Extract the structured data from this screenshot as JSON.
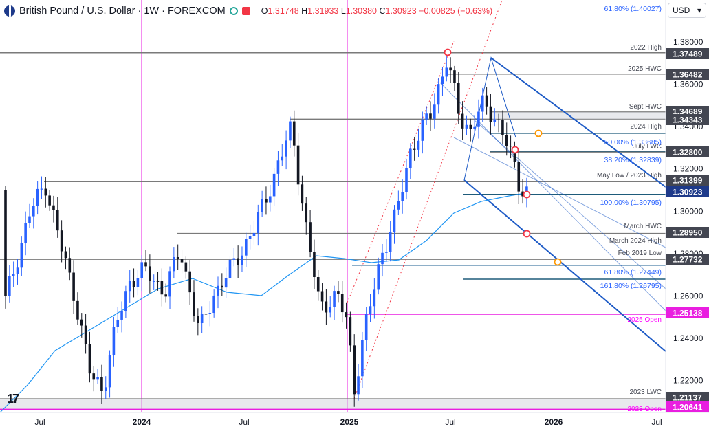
{
  "header": {
    "symbol": "British Pound / U.S. Dollar · 1W · FOREXCOM",
    "o_label": "O",
    "o": "1.31748",
    "h_label": "H",
    "h": "1.31933",
    "l_label": "L",
    "l": "1.30380",
    "c_label": "C",
    "c": "1.30923",
    "change": "−0.00825 (−0.63%)",
    "currency": "USD"
  },
  "colors": {
    "up": "#2962ff",
    "down": "#131722",
    "ma": "#2196f3",
    "level": "#7a7a7a",
    "magenta": "#e91ee0",
    "channel": "#1e5bc6",
    "fib_text": "#2962ff",
    "open_label": "#ff00ff",
    "badge_dark": "#434651",
    "last_badge": "#1e3a8a"
  },
  "chart_data": {
    "type": "candlestick",
    "yrange": [
      1.2113,
      1.3749
    ],
    "last_price": 1.30923,
    "price_ticks": [
      "1.38000",
      "1.36000",
      "1.34000",
      "1.32000",
      "1.30000",
      "1.28000",
      "1.26000",
      "1.24000",
      "1.22000"
    ],
    "time_ticks": [
      "Jul",
      "2024",
      "Jul",
      "2025",
      "Jul",
      "2026",
      "Jul"
    ],
    "horizontal_levels": [
      {
        "label": "2022 High",
        "badge": "1.37489",
        "price": 1.37489
      },
      {
        "label": "2025 HWC",
        "badge": "1.36482",
        "price": 1.36482
      },
      {
        "label": "Sept HWC",
        "badge": "1.34689",
        "price": 1.34689
      },
      {
        "label": "",
        "badge": "1.34343",
        "price": 1.34343
      },
      {
        "label": "2024 High",
        "badge": "",
        "price": 1.3435
      },
      {
        "label": "July LWC",
        "badge": "1.32800",
        "price": 1.328
      },
      {
        "label": "May Low / 2023 High",
        "badge": "1.31399",
        "price": 1.31399
      },
      {
        "label": "March HWC",
        "badge": "",
        "price": 1.2895
      },
      {
        "label": "March 2024 High",
        "badge": "1.28950",
        "price": 1.2895
      },
      {
        "label": "Feb 2019 Low",
        "badge": "1.27732",
        "price": 1.27732
      },
      {
        "label": "2025 Open",
        "badge": "1.25138",
        "price": 1.25138
      },
      {
        "label": "2023 LWC",
        "badge": "1.21137",
        "price": 1.21137
      },
      {
        "label": "2023 Open",
        "badge": "1.20641",
        "price": 1.20641
      }
    ],
    "fib_levels": [
      {
        "label": "61.80% (1.40027)",
        "price": 1.40027
      },
      {
        "label": "50.00% (1.33685)",
        "price": 1.33685
      },
      {
        "label": "38.20% (1.32839)",
        "price": 1.32839
      },
      {
        "label": "100.00% (1.30795)",
        "price": 1.30795
      },
      {
        "label": "61.80% (1.27449)",
        "price": 1.27449
      },
      {
        "label": "161.80% (1.26795)",
        "price": 1.26795
      }
    ],
    "ohlc_last": {
      "open": 1.31748,
      "high": 1.31933,
      "low": 1.3038,
      "close": 1.30923
    }
  }
}
